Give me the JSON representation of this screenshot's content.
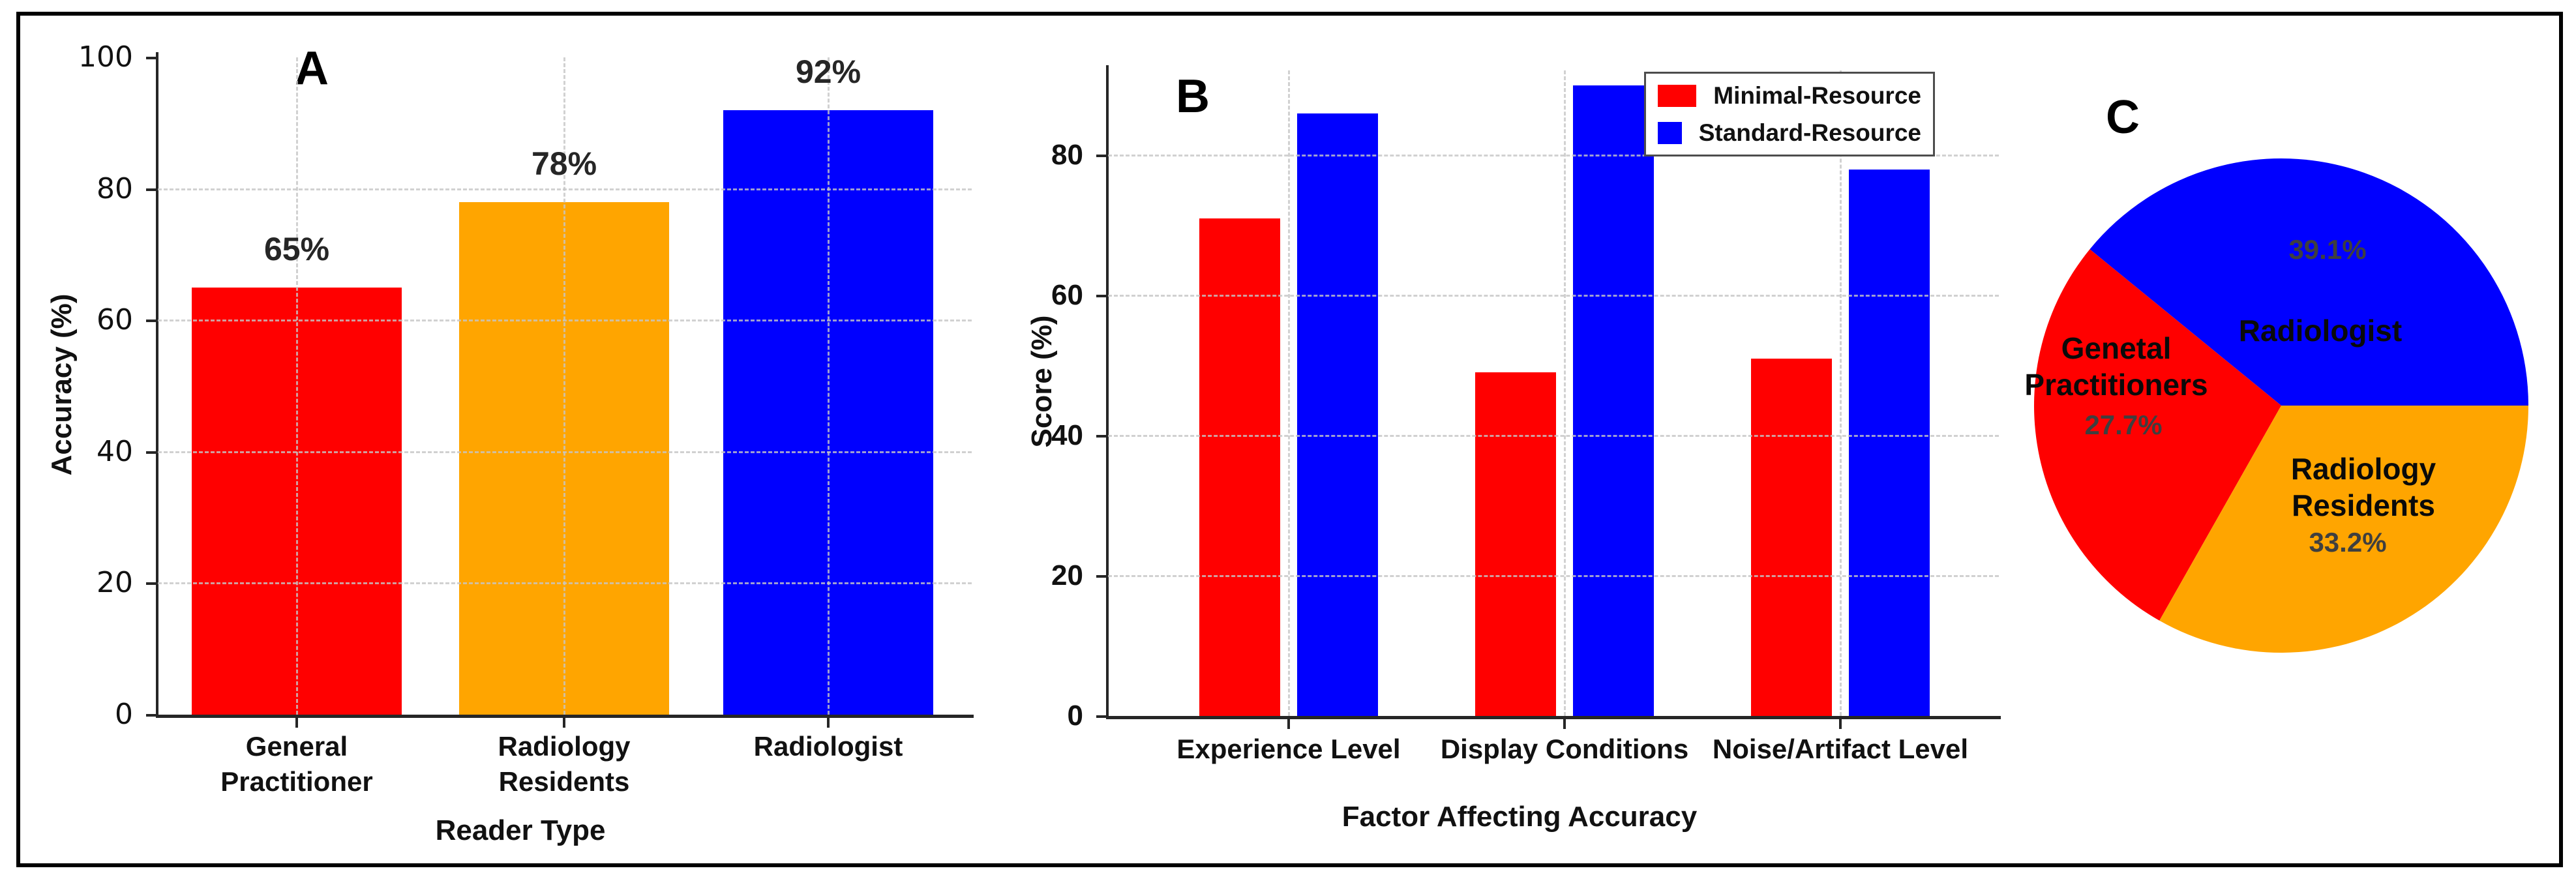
{
  "figure": {
    "background": "#ffffff",
    "border_color": "#000000",
    "accent_colors": {
      "red": "#ff0000",
      "blue": "#0000ff",
      "orange": "#ffa500"
    }
  },
  "chart_data": [
    {
      "type": "bar",
      "panel_letter": "A",
      "categories": [
        "General\nPractitioner",
        "Radiology\nResidents",
        "Radiologist"
      ],
      "values": [
        65,
        78,
        92
      ],
      "bar_labels": [
        "65%",
        "78%",
        "92%"
      ],
      "bar_colors": [
        "#ff0000",
        "#ffa500",
        "#0000ff"
      ],
      "xlabel": "Reader Type",
      "ylabel": "Accuracy (%)",
      "ylim": [
        0,
        100
      ],
      "yticks": [
        0,
        20,
        40,
        60,
        80,
        100
      ],
      "gridline_yticks": [
        20,
        40,
        60,
        80
      ],
      "grid": "dashed horizontal and vertical"
    },
    {
      "type": "bar",
      "panel_letter": "B",
      "categories": [
        "Experience Level",
        "Display Conditions",
        "Noise/Artifact Level"
      ],
      "series": [
        {
          "name": "Minimal-Resource",
          "color": "#ff0000",
          "values": [
            71,
            49,
            51
          ]
        },
        {
          "name": "Standard-Resource",
          "color": "#0000ff",
          "values": [
            86,
            90,
            78
          ]
        }
      ],
      "xlabel": "Factor Affecting Accuracy",
      "ylabel": "Score (%)",
      "ylim": [
        0,
        92
      ],
      "yticks": [
        0,
        20,
        40,
        60,
        80
      ],
      "gridline_yticks": [
        20,
        40,
        60,
        80
      ],
      "legend_position": "upper right",
      "grid": "dashed horizontal and vertical"
    },
    {
      "type": "pie",
      "panel_letter": "C",
      "start_angle": 0,
      "direction": "counterclockwise",
      "slices": [
        {
          "label": "Radiologist",
          "value": 39.1,
          "pct_label": "39.1%",
          "color": "#0000ff"
        },
        {
          "label": "Genetal\nPractitioners",
          "value": 27.7,
          "pct_label": "27.7%",
          "color": "#ff0000"
        },
        {
          "label": "Radiology\nResidents",
          "value": 33.2,
          "pct_label": "33.2%",
          "color": "#ffa500"
        }
      ]
    }
  ]
}
